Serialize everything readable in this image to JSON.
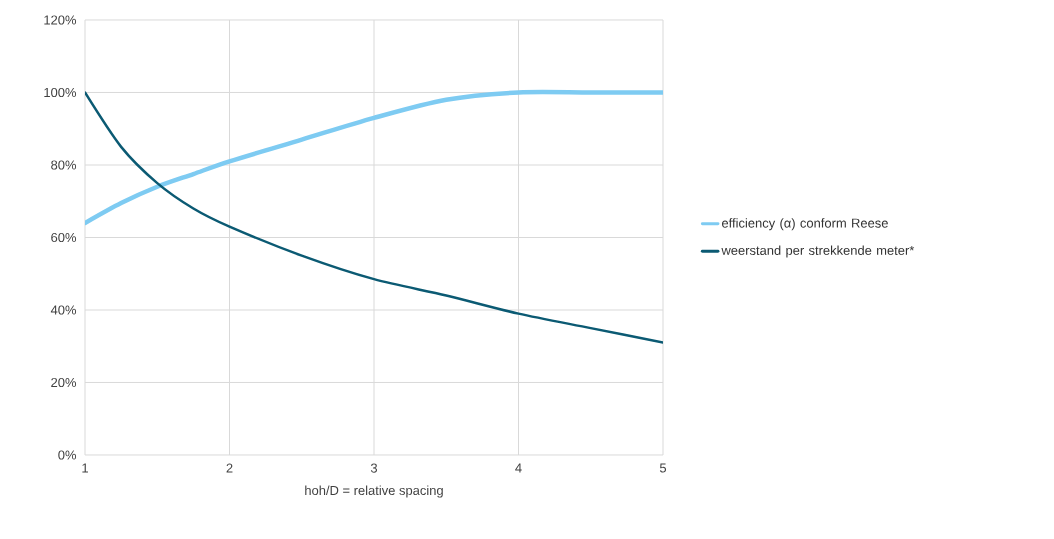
{
  "chart_data": {
    "type": "line",
    "xlabel": "hoh/D = relative spacing",
    "x": [
      1,
      1.25,
      1.5,
      1.75,
      2,
      2.5,
      3,
      3.5,
      4,
      4.5,
      5
    ],
    "series": [
      {
        "name": "efficiency (α) conform Reese",
        "color": "#7ecbf2",
        "values": [
          64,
          69.5,
          74,
          77.5,
          81,
          87,
          93,
          98,
          100,
          100,
          100
        ]
      },
      {
        "name": "weerstand per strekkende meter*",
        "color": "#0b5a73",
        "values": [
          100,
          85,
          75,
          68,
          63,
          55,
          48.5,
          44,
          39,
          35,
          31
        ]
      }
    ],
    "xlim": [
      1,
      5
    ],
    "xticks": [
      1,
      2,
      3,
      4,
      5
    ],
    "ylim": [
      0,
      120
    ],
    "yticks": [
      {
        "value": 0,
        "label": "0%"
      },
      {
        "value": 20,
        "label": "20%"
      },
      {
        "value": 40,
        "label": "40%"
      },
      {
        "value": 60,
        "label": "60%"
      },
      {
        "value": 80,
        "label": "80%"
      },
      {
        "value": 100,
        "label": "100%"
      },
      {
        "value": 120,
        "label": "120%"
      }
    ],
    "grid": true,
    "legend": "right"
  }
}
